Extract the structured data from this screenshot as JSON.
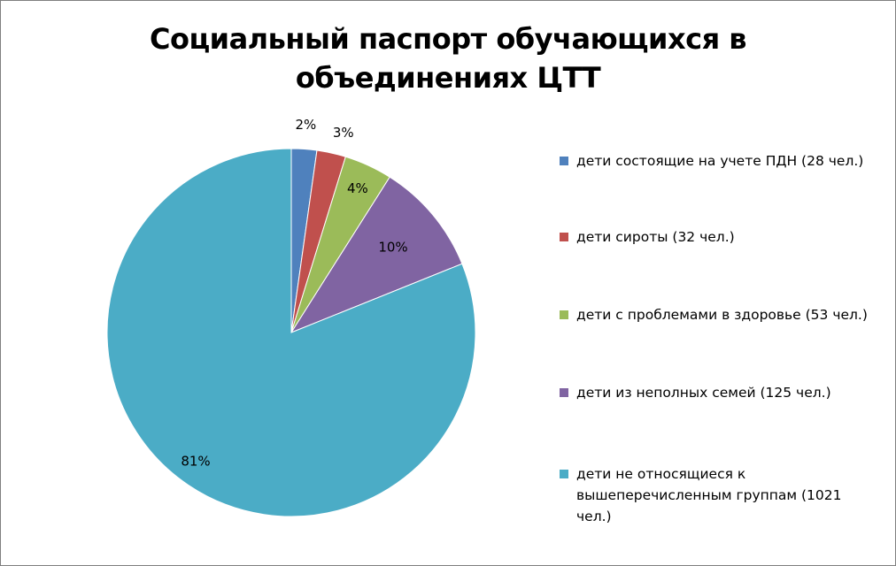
{
  "chart_data": {
    "type": "pie",
    "title": "Социальный паспорт обучающихся в объединениях ЦТТ",
    "title_lines": [
      "Социальный паспорт обучающихся в",
      "объединениях ЦТТ"
    ],
    "legend_position": "right",
    "slices": [
      {
        "label": "дети состоящие на учете ПДН (28 чел.)",
        "value": 28,
        "percent_label": "2%",
        "color": "#4F81BD"
      },
      {
        "label": "дети сироты (32 чел.)",
        "value": 32,
        "percent_label": "3%",
        "color": "#C0504D"
      },
      {
        "label": "дети с проблемами в здоровье (53 чел.)",
        "value": 53,
        "percent_label": "4%",
        "color": "#9BBB59"
      },
      {
        "label": "дети из неполных семей (125 чел.)",
        "value": 125,
        "percent_label": "10%",
        "color": "#8064A2"
      },
      {
        "label": "дети не относящиеся к вышеперечисленным группам (1021 чел.)",
        "value": 1021,
        "percent_label": "81%",
        "color": "#4BACC6"
      }
    ]
  }
}
